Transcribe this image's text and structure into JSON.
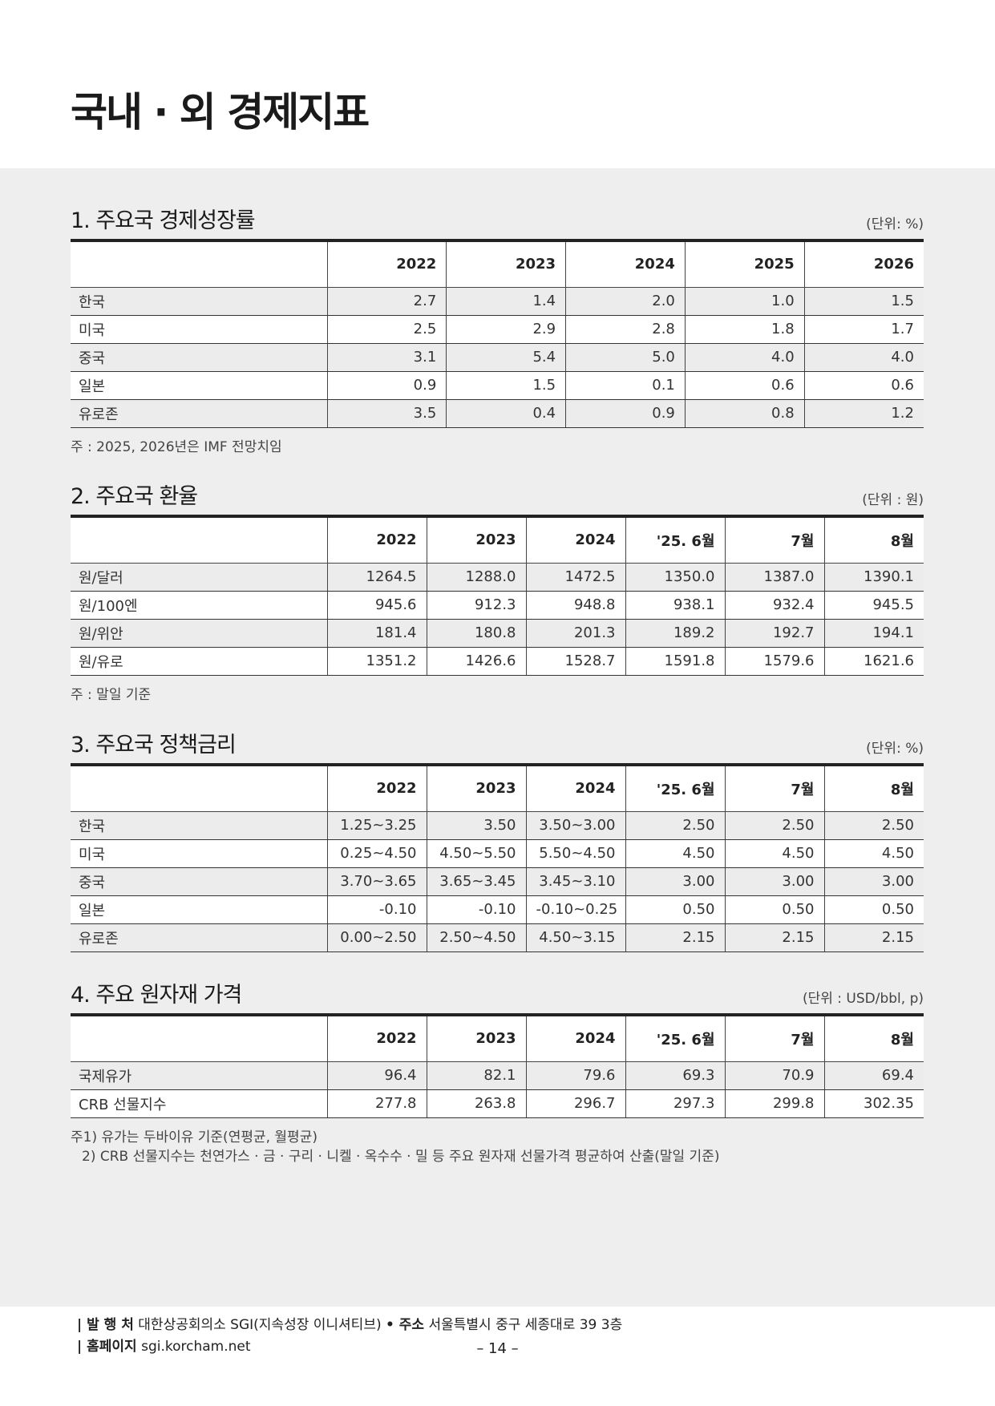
{
  "page_title": "국내 · 외 경제지표",
  "sections": [
    {
      "title": "1. 주요국 경제성장률",
      "unit": "(단위: %)",
      "columns": [
        "",
        "2022",
        "2023",
        "2024",
        "2025",
        "2026"
      ],
      "rows": [
        [
          "한국",
          "2.7",
          "1.4",
          "2.0",
          "1.0",
          "1.5"
        ],
        [
          "미국",
          "2.5",
          "2.9",
          "2.8",
          "1.8",
          "1.7"
        ],
        [
          "중국",
          "3.1",
          "5.4",
          "5.0",
          "4.0",
          "4.0"
        ],
        [
          "일본",
          "0.9",
          "1.5",
          "0.1",
          "0.6",
          "0.6"
        ],
        [
          "유로존",
          "3.5",
          "0.4",
          "0.9",
          "0.8",
          "1.2"
        ]
      ],
      "notes": [
        "주 : 2025, 2026년은 IMF 전망치임"
      ]
    },
    {
      "title": "2. 주요국 환율",
      "unit": "(단위 : 원)",
      "columns": [
        "",
        "2022",
        "2023",
        "2024",
        "'25. 6월",
        "7월",
        "8월"
      ],
      "rows": [
        [
          "원/달러",
          "1264.5",
          "1288.0",
          "1472.5",
          "1350.0",
          "1387.0",
          "1390.1"
        ],
        [
          "원/100엔",
          "945.6",
          "912.3",
          "948.8",
          "938.1",
          "932.4",
          "945.5"
        ],
        [
          "원/위안",
          "181.4",
          "180.8",
          "201.3",
          "189.2",
          "192.7",
          "194.1"
        ],
        [
          "원/유로",
          "1351.2",
          "1426.6",
          "1528.7",
          "1591.8",
          "1579.6",
          "1621.6"
        ]
      ],
      "notes": [
        "주 : 말일 기준"
      ]
    },
    {
      "title": "3. 주요국 정책금리",
      "unit": "(단위: %)",
      "columns": [
        "",
        "2022",
        "2023",
        "2024",
        "'25. 6월",
        "7월",
        "8월"
      ],
      "rows": [
        [
          "한국",
          "1.25~3.25",
          "3.50",
          "3.50~3.00",
          "2.50",
          "2.50",
          "2.50"
        ],
        [
          "미국",
          "0.25~4.50",
          "4.50~5.50",
          "5.50~4.50",
          "4.50",
          "4.50",
          "4.50"
        ],
        [
          "중국",
          "3.70~3.65",
          "3.65~3.45",
          "3.45~3.10",
          "3.00",
          "3.00",
          "3.00"
        ],
        [
          "일본",
          "-0.10",
          "-0.10",
          "-0.10~0.25",
          "0.50",
          "0.50",
          "0.50"
        ],
        [
          "유로존",
          "0.00~2.50",
          "2.50~4.50",
          "4.50~3.15",
          "2.15",
          "2.15",
          "2.15"
        ]
      ],
      "notes": []
    },
    {
      "title": "4. 주요 원자재 가격",
      "unit": "(단위 : USD/bbl, p)",
      "columns": [
        "",
        "2022",
        "2023",
        "2024",
        "'25. 6월",
        "7월",
        "8월"
      ],
      "rows": [
        [
          "국제유가",
          "96.4",
          "82.1",
          "79.6",
          "69.3",
          "70.9",
          "69.4"
        ],
        [
          "CRB 선물지수",
          "277.8",
          "263.8",
          "296.7",
          "297.3",
          "299.8",
          "302.35"
        ]
      ],
      "notes": [
        "주1) 유가는 두바이유 기준(연평균, 월평균)",
        "2) CRB 선물지수는 천연가스 · 금 · 구리 · 니켈 · 옥수수 · 밀 등 주요 원자재 선물가격 평균하여 산출(말일 기준)"
      ]
    }
  ],
  "footer": {
    "publisher_label": "| 발 행 처",
    "publisher": "대한상공회의소 SGI(지속성장 이니셔티브)",
    "address_label": "• 주소",
    "address": "서울특별시 중구 세종대로 39 3층",
    "homepage_label": "| 홈페이지",
    "homepage": "sgi.korcham.net",
    "page_number": "– 14 –"
  }
}
